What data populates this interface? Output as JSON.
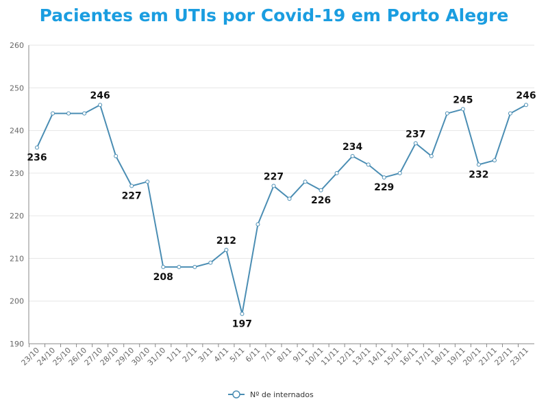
{
  "chart_data": {
    "type": "line",
    "title": "Pacientes em UTIs por Covid-19 em Porto Alegre",
    "xlabel": "",
    "ylabel": "",
    "ylim": [
      190,
      260
    ],
    "yticks": [
      190,
      200,
      210,
      220,
      230,
      240,
      250,
      260
    ],
    "grid": true,
    "legend_position": "bottom-center",
    "categories": [
      "23/10",
      "24/10",
      "25/10",
      "26/10",
      "27/10",
      "28/10",
      "29/10",
      "30/10",
      "31/10",
      "1/11",
      "2/11",
      "3/11",
      "4/11",
      "5/11",
      "6/11",
      "7/11",
      "8/11",
      "9/11",
      "10/11",
      "11/11",
      "12/11",
      "13/11",
      "14/11",
      "15/11",
      "16/11",
      "17/11",
      "18/11",
      "19/11",
      "20/11",
      "21/11",
      "22/11",
      "23/11"
    ],
    "series": [
      {
        "name": "Nº de internados",
        "color": "#4a8db3",
        "values": [
          236,
          244,
          244,
          244,
          246,
          234,
          227,
          228,
          208,
          208,
          208,
          209,
          212,
          197,
          218,
          227,
          224,
          228,
          226,
          230,
          234,
          232,
          229,
          230,
          237,
          234,
          244,
          245,
          232,
          233,
          244,
          246
        ]
      }
    ],
    "data_labels": [
      {
        "index": 0,
        "text": "236",
        "placement": "below"
      },
      {
        "index": 4,
        "text": "246",
        "placement": "above"
      },
      {
        "index": 6,
        "text": "227",
        "placement": "below"
      },
      {
        "index": 8,
        "text": "208",
        "placement": "below"
      },
      {
        "index": 12,
        "text": "212",
        "placement": "above"
      },
      {
        "index": 13,
        "text": "197",
        "placement": "below"
      },
      {
        "index": 15,
        "text": "227",
        "placement": "above"
      },
      {
        "index": 18,
        "text": "226",
        "placement": "below"
      },
      {
        "index": 20,
        "text": "234",
        "placement": "above"
      },
      {
        "index": 22,
        "text": "229",
        "placement": "below"
      },
      {
        "index": 24,
        "text": "237",
        "placement": "above"
      },
      {
        "index": 27,
        "text": "245",
        "placement": "above"
      },
      {
        "index": 28,
        "text": "232",
        "placement": "below"
      },
      {
        "index": 31,
        "text": "246",
        "placement": "above"
      }
    ]
  }
}
